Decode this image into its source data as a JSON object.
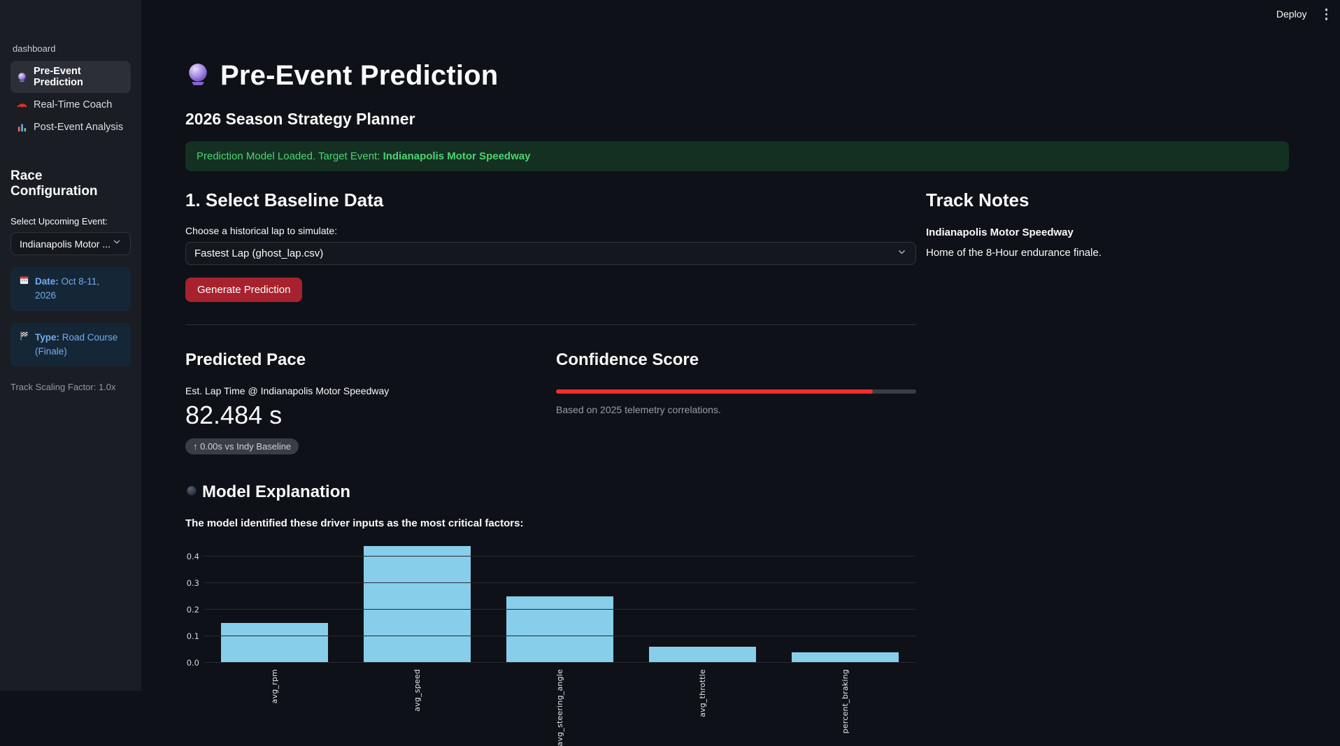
{
  "colors": {
    "primary_button": "#a7222e",
    "progress_fill": "#ff2b2b",
    "bar_fill": "#87ceeb",
    "success_text": "#4cd471",
    "info_text": "#74abef"
  },
  "header": {
    "deploy_label": "Deploy",
    "kebab_icon": "kebab-menu-icon"
  },
  "sidebar": {
    "app_name": "dashboard",
    "nav": [
      {
        "label": "Pre-Event Prediction",
        "icon": "crystal-ball-icon",
        "active": true
      },
      {
        "label": "Real-Time Coach",
        "icon": "race-car-icon",
        "active": false
      },
      {
        "label": "Post-Event Analysis",
        "icon": "bar-chart-icon",
        "active": false
      }
    ],
    "section_title": "Race Configuration",
    "event_select": {
      "label": "Select Upcoming Event:",
      "value": "Indianapolis Motor ..."
    },
    "info_boxes": [
      {
        "icon": "calendar-icon",
        "label": "Date:",
        "text": " Oct 8-11, 2026"
      },
      {
        "icon": "checkered-flag-icon",
        "label": "Type:",
        "text": " Road Course (Finale)"
      }
    ],
    "caption": "Track Scaling Factor: 1.0x"
  },
  "main": {
    "title": "Pre-Event Prediction",
    "title_icon": "crystal-ball-icon",
    "subtitle": "2026 Season Strategy Planner",
    "alert": {
      "text": "Prediction Model Loaded. Target Event: ",
      "highlight": "Indianapolis Motor Speedway"
    },
    "baseline": {
      "heading": "1. Select Baseline Data",
      "select_label": "Choose a historical lap to simulate:",
      "select_value": "Fastest Lap (ghost_lap.csv)",
      "button_label": "Generate Prediction"
    },
    "track_notes": {
      "heading": "Track Notes",
      "track_name": "Indianapolis Motor Speedway",
      "description": "Home of the 8-Hour endurance finale."
    },
    "predicted_pace": {
      "heading": "Predicted Pace",
      "metric_label": "Est. Lap Time @ Indianapolis Motor Speedway",
      "metric_value": "82.484 s",
      "delta": "↑ 0.00s vs Indy Baseline"
    },
    "confidence": {
      "heading": "Confidence Score",
      "percent": 88,
      "caption": "Based on 2025 telemetry correlations."
    },
    "explanation": {
      "heading": "Model Explanation",
      "icon": "model-explanation-icon",
      "description": "The model identified these driver inputs as the most critical factors:"
    }
  },
  "chart_data": {
    "type": "bar",
    "categories": [
      "avg_rpm",
      "avg_speed",
      "avg_steering_angle",
      "avg_throttle",
      "percent_braking"
    ],
    "values": [
      0.15,
      0.44,
      0.25,
      0.06,
      0.04
    ],
    "title": "",
    "xlabel": "",
    "ylabel": "",
    "ylim": [
      0,
      0.45
    ],
    "yticks": [
      0.0,
      0.1,
      0.2,
      0.3,
      0.4
    ],
    "bar_color": "#87ceeb",
    "grid": true,
    "legend": false,
    "x_tick_rotation": 90
  }
}
